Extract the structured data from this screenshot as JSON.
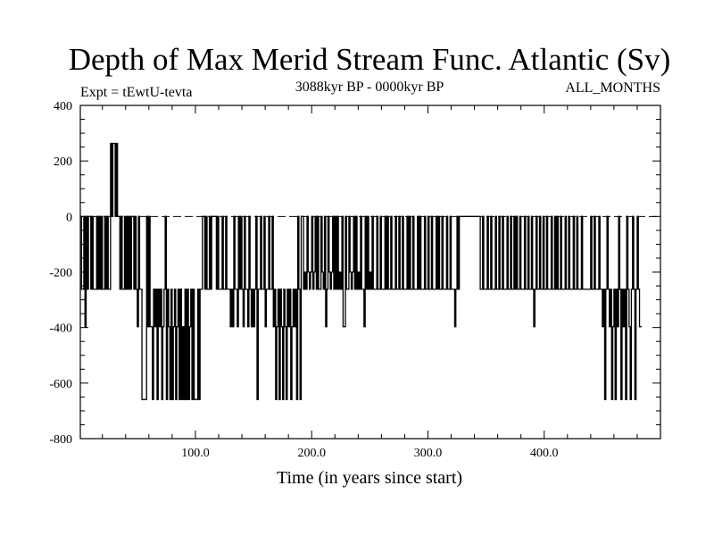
{
  "chart_data": {
    "type": "line",
    "title": "Depth of Max Merid Stream Func. Atlantic (Sv)",
    "subtitle_left": "Expt = tEwtU-tevta",
    "subtitle_center": "3088kyr BP - 0000kyr BP",
    "subtitle_right": "ALL_MONTHS",
    "xlabel": "Time (in years since start)",
    "ylabel": "",
    "xlim": [
      1,
      500
    ],
    "ylim": [
      -800,
      400
    ],
    "x_ticks": [
      100,
      200,
      300,
      400
    ],
    "x_tick_labels": [
      "100.0",
      "200.0",
      "300.0",
      "400.0"
    ],
    "y_ticks": [
      400,
      200,
      0,
      -200,
      -400,
      -600,
      -800
    ],
    "y_tick_labels": [
      "400",
      "200",
      "0",
      "-200",
      "-400",
      "-600",
      "-800"
    ],
    "reference_line_y": 0,
    "grid": false,
    "series": [
      {
        "name": "",
        "color": "#000000",
        "x_start": 1,
        "x_step": 1,
        "values": [
          0,
          -262,
          -262,
          0,
          -397,
          0,
          -262,
          0,
          0,
          -262,
          0,
          -262,
          -262,
          -262,
          0,
          -262,
          0,
          -262,
          0,
          -262,
          -262,
          0,
          -262,
          0,
          -262,
          -262,
          263,
          0,
          263,
          263,
          0,
          263,
          0,
          0,
          -262,
          0,
          -262,
          -262,
          0,
          -262,
          0,
          -262,
          0,
          -262,
          0,
          0,
          -262,
          0,
          -262,
          -397,
          0,
          -262,
          -262,
          -659,
          -659,
          -659,
          -659,
          0,
          -397,
          0,
          -397,
          -397,
          -659,
          -262,
          -397,
          -262,
          -659,
          -262,
          -397,
          -262,
          -659,
          -397,
          -262,
          0,
          -659,
          -262,
          -397,
          -659,
          -262,
          -659,
          -397,
          -262,
          -659,
          -397,
          -262,
          -659,
          -262,
          -659,
          -397,
          -659,
          -262,
          -659,
          -262,
          -659,
          -397,
          -262,
          -659,
          -262,
          -659,
          -659,
          -659,
          -262,
          -659,
          -262,
          -262,
          0,
          0,
          -262,
          0,
          -262,
          -262,
          0,
          -262,
          0,
          0,
          0,
          0,
          -262,
          0,
          -262,
          -262,
          -262,
          0,
          -262,
          -262,
          0,
          -262,
          -262,
          -262,
          -397,
          -262,
          -397,
          0,
          -262,
          -262,
          -397,
          0,
          -262,
          0,
          -262,
          -397,
          0,
          -262,
          -262,
          -397,
          0,
          -262,
          -397,
          -262,
          -397,
          -262,
          0,
          -659,
          -262,
          -262,
          0,
          -262,
          -262,
          0,
          -397,
          -262,
          -262,
          0,
          -262,
          -262,
          0,
          -397,
          -262,
          -659,
          -397,
          -262,
          -659,
          -262,
          -397,
          -659,
          -262,
          -397,
          -659,
          -262,
          -397,
          -262,
          -659,
          -397,
          -262,
          -397,
          -262,
          -659,
          0,
          -262,
          -659,
          0,
          0,
          -262,
          -200,
          -262,
          0,
          -200,
          -262,
          -200,
          0,
          -262,
          -200,
          0,
          -262,
          0,
          -262,
          -262,
          0,
          -200,
          -262,
          0,
          -397,
          -262,
          0,
          -200,
          -262,
          -200,
          0,
          -262,
          0,
          -262,
          0,
          -262,
          -200,
          -262,
          0,
          -397,
          -397,
          0,
          -262,
          -262,
          0,
          -200,
          -262,
          -200,
          0,
          -262,
          0,
          -262,
          -200,
          -262,
          0,
          -262,
          -262,
          -397,
          0,
          -262,
          0,
          -262,
          -200,
          -262,
          0,
          -262,
          -262,
          -262,
          0,
          -262,
          -262,
          0,
          -262,
          -262,
          -262,
          0,
          -262,
          0,
          -262,
          -262,
          0,
          -262,
          -262,
          -262,
          0,
          -262,
          -262,
          0,
          -262,
          -262,
          0,
          -262,
          -262,
          -262,
          0,
          -262,
          0,
          -262,
          -262,
          0,
          -262,
          -262,
          -262,
          0,
          -262,
          0,
          -262,
          -262,
          -262,
          0,
          -262,
          -262,
          0,
          -262,
          -262,
          0,
          -262,
          -262,
          -262,
          0,
          -262,
          0,
          -262,
          -262,
          0,
          -262,
          -262,
          -262,
          0,
          -262,
          -262,
          0,
          -262,
          -262,
          -262,
          -397,
          -262,
          0,
          -262,
          0,
          0,
          0,
          0,
          0,
          0,
          0,
          0,
          0,
          0,
          0,
          0,
          0,
          0,
          0,
          0,
          0,
          0,
          -262,
          -262,
          0,
          -262,
          -262,
          -262,
          0,
          -262,
          -262,
          0,
          -262,
          -262,
          -262,
          0,
          -262,
          -262,
          0,
          -262,
          -262,
          0,
          -262,
          -262,
          -262,
          0,
          -262,
          -262,
          0,
          -262,
          -262,
          0,
          -262,
          0,
          -262,
          -262,
          0,
          -262,
          -262,
          -262,
          0,
          -262,
          -262,
          0,
          -262,
          -262,
          0,
          -262,
          -397,
          -262,
          0,
          -262,
          -262,
          0,
          -262,
          -262,
          0,
          -262,
          -262,
          0,
          -262,
          -262,
          -262,
          0,
          -262,
          -262,
          0,
          -262,
          0,
          -262,
          -262,
          0,
          -262,
          -262,
          -262,
          0,
          -262,
          -262,
          0,
          -262,
          -262,
          -262,
          0,
          -262,
          -262,
          0,
          -262,
          -262,
          -262,
          0,
          -262,
          -262,
          -262,
          -262,
          -262,
          -262,
          -262,
          0,
          -262,
          -262,
          0,
          -262,
          -262,
          -262,
          0,
          -262,
          -262,
          -397,
          -262,
          -659,
          -262,
          0,
          -262,
          -397,
          -262,
          -659,
          -397,
          -262,
          -659,
          -262,
          -397,
          0,
          -262,
          -659,
          -262,
          -397,
          -262,
          -659,
          0,
          -262,
          -397,
          -659,
          -262,
          0,
          -262,
          -659,
          -262,
          0,
          -262,
          -397,
          -397
        ]
      }
    ]
  }
}
